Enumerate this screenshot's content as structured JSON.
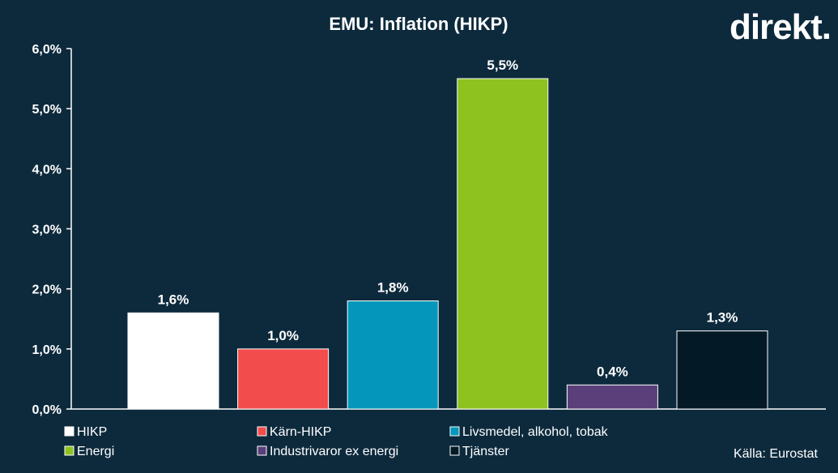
{
  "header": {
    "title": "EMU: Inflation (HIKP)",
    "logo": "direkt."
  },
  "source": "Källa:  Eurostat",
  "colors": {
    "background": "#0d2a3d",
    "axis": "#ffffff"
  },
  "chart_data": {
    "type": "bar",
    "title": "EMU: Inflation (HIKP)",
    "xlabel": "",
    "ylabel": "",
    "ylim": [
      0,
      6
    ],
    "yticks": [
      0,
      1,
      2,
      3,
      4,
      5,
      6
    ],
    "ytick_labels": [
      "0,0%",
      "1,0%",
      "2,0%",
      "3,0%",
      "4,0%",
      "5,0%",
      "6,0%"
    ],
    "grid": false,
    "legend_position": "bottom",
    "categories": [
      "HIKP",
      "Kärn-HIKP",
      "Livsmedel, alkohol, tobak",
      "Energi",
      "Industrivaror ex energi",
      "Tjänster"
    ],
    "values": [
      1.6,
      1.0,
      1.8,
      5.5,
      0.4,
      1.3
    ],
    "value_labels": [
      "1,6%",
      "1,0%",
      "1,8%",
      "5,5%",
      "0,4%",
      "1,3%"
    ],
    "bar_colors": [
      "#ffffff",
      "#f24c4c",
      "#0597bb",
      "#8dc21f",
      "#5b3f7a",
      "#031a26"
    ],
    "legend": [
      {
        "label": "HIKP",
        "color": "#ffffff"
      },
      {
        "label": "Kärn-HIKP",
        "color": "#f24c4c"
      },
      {
        "label": "Livsmedel, alkohol, tobak",
        "color": "#0597bb"
      },
      {
        "label": "Energi",
        "color": "#8dc21f"
      },
      {
        "label": "Industrivaror ex energi",
        "color": "#5b3f7a"
      },
      {
        "label": "Tjänster",
        "color": "#031a26"
      }
    ]
  }
}
